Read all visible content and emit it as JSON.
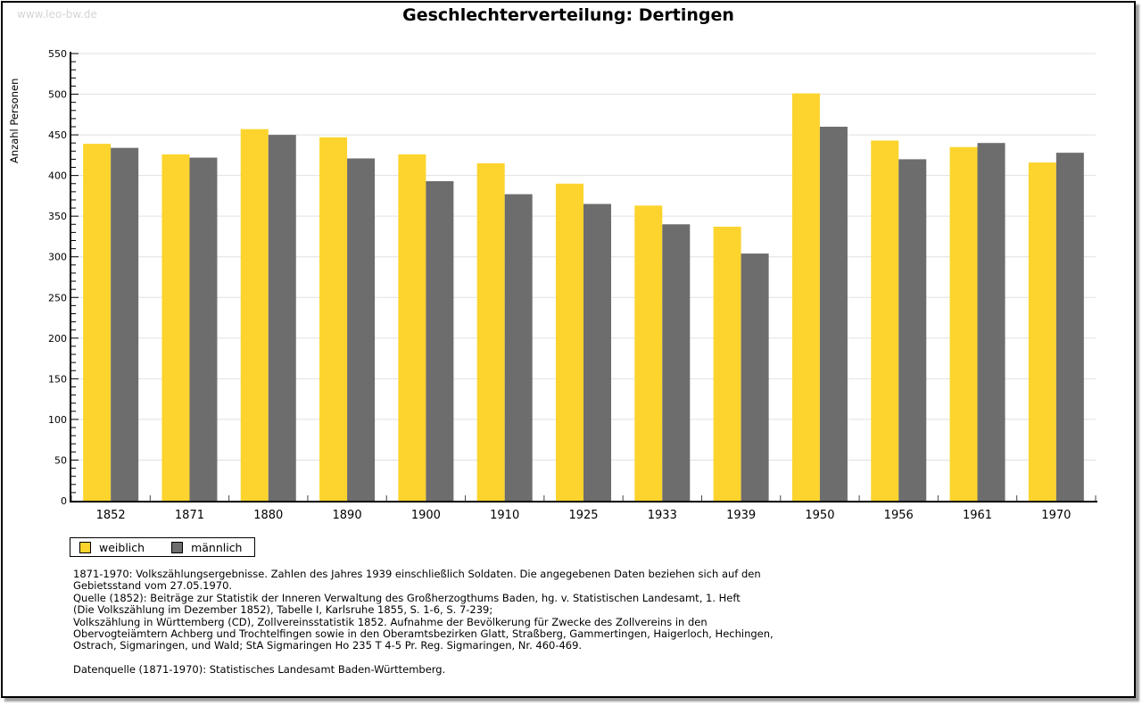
{
  "watermark": "www.leo-bw.de",
  "title": "Geschlechterverteilung: Dertingen",
  "chart_data": {
    "type": "bar",
    "title": "Geschlechterverteilung: Dertingen",
    "xlabel": "",
    "ylabel": "Anzahl Personen",
    "ylim": [
      0,
      550
    ],
    "ytick_major": 50,
    "ytick_minor": 10,
    "grid": true,
    "legend_position": "bottom-left",
    "categories": [
      "1852",
      "1871",
      "1880",
      "1890",
      "1900",
      "1910",
      "1925",
      "1933",
      "1939",
      "1950",
      "1956",
      "1961",
      "1970"
    ],
    "series": [
      {
        "name": "weiblich",
        "color": "#FCD42D",
        "values": [
          439,
          426,
          457,
          447,
          426,
          415,
          390,
          363,
          337,
          501,
          443,
          435,
          416
        ]
      },
      {
        "name": "männlich",
        "color": "#6D6D6D",
        "values": [
          434,
          422,
          450,
          421,
          393,
          377,
          365,
          340,
          304,
          460,
          420,
          440,
          428
        ]
      }
    ],
    "colors": {
      "axis": "#000000",
      "gridline": "#E0E0E0",
      "boundary_tick": "#444444"
    }
  },
  "notes": [
    "1871-1970: Volkszählungsergebnisse. Zahlen des Jahres 1939 einschließlich Soldaten. Die angegebenen Daten beziehen sich auf den",
    "Gebietsstand vom 27.05.1970.",
    "Quelle (1852): Beiträge zur Statistik der Inneren Verwaltung des Großherzogthums Baden, hg. v. Statistischen Landesamt, 1. Heft",
    "(Die Volkszählung im Dezember 1852), Tabelle I, Karlsruhe 1855, S. 1-6, S. 7-239;",
    "Volkszählung in Württemberg (CD), Zollvereinsstatistik 1852. Aufnahme der Bevölkerung für Zwecke des Zollvereins in den",
    "Obervogteiämtern Achberg und Trochtelfingen sowie in den Oberamtsbezirken Glatt, Straßberg, Gammertingen, Haigerloch, Hechingen,",
    "Ostrach, Sigmaringen, und Wald; StA Sigmaringen Ho 235 T 4-5 Pr. Reg. Sigmaringen, Nr. 460-469.",
    "",
    "Datenquelle (1871-1970): Statistisches Landesamt Baden-Württemberg."
  ]
}
